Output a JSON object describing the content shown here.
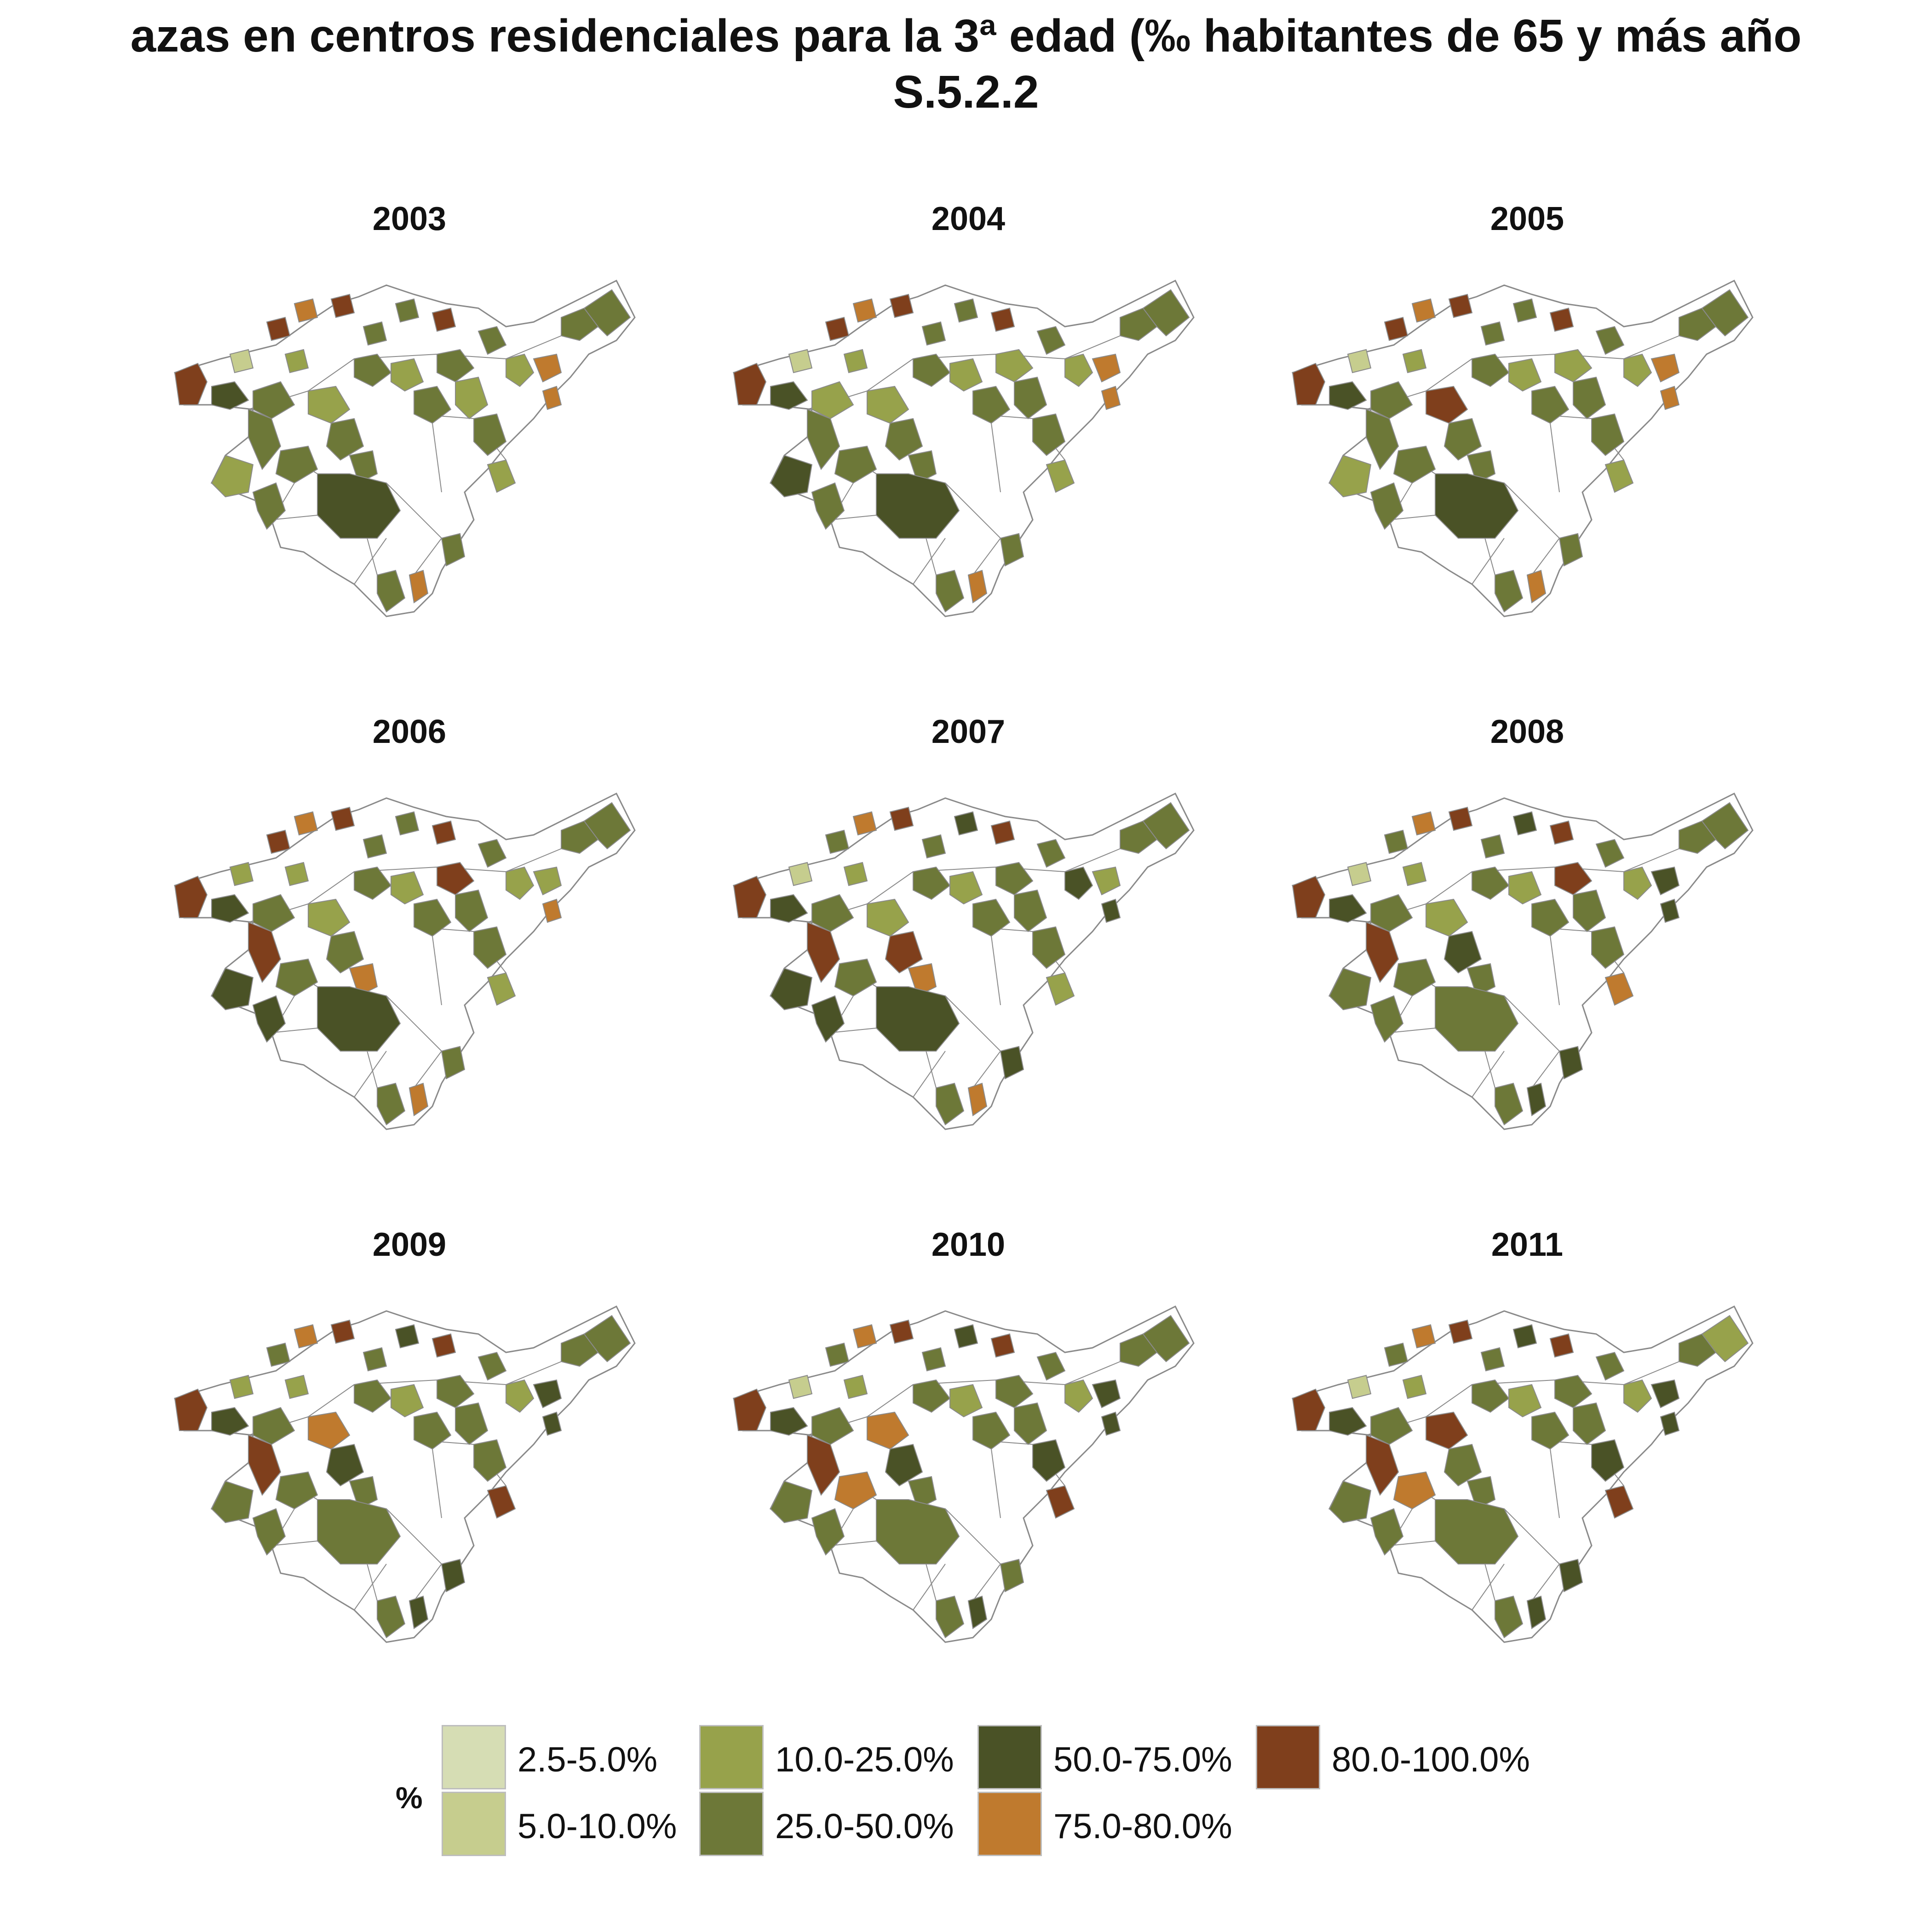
{
  "title_line1": "azas en centros residenciales para la 3ª edad (‰ habitantes de 65 y más año",
  "title_line2": "S.5.2.2",
  "panels": [
    {
      "year": "2003"
    },
    {
      "year": "2004"
    },
    {
      "year": "2005"
    },
    {
      "year": "2006"
    },
    {
      "year": "2007"
    },
    {
      "year": "2008"
    },
    {
      "year": "2009"
    },
    {
      "year": "2010"
    },
    {
      "year": "2011"
    }
  ],
  "legend": {
    "title": "%",
    "items": [
      {
        "label": "2.5-5.0%",
        "color": "#d6ddb4"
      },
      {
        "label": "5.0-10.0%",
        "color": "#c6cd8e"
      },
      {
        "label": "10.0-25.0%",
        "color": "#97a24b"
      },
      {
        "label": "25.0-50.0%",
        "color": "#6d7838"
      },
      {
        "label": "50.0-75.0%",
        "color": "#4a5226"
      },
      {
        "label": "75.0-80.0%",
        "color": "#bf7a2e"
      },
      {
        "label": "80.0-100.0%",
        "color": "#7f3f1c"
      }
    ]
  },
  "map_colors": {
    "none": "#ffffff",
    "outline": "#8a8a8a",
    "c1": "#d6ddb4",
    "c2": "#c6cd8e",
    "c3": "#97a24b",
    "c4": "#6d7838",
    "c5": "#4a5226",
    "c6": "#bf7a2e",
    "c7": "#7f3f1c"
  }
}
